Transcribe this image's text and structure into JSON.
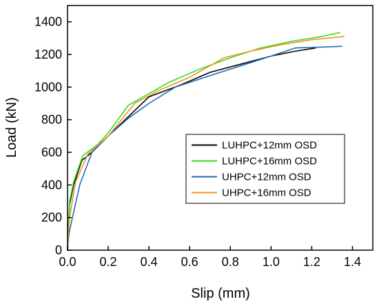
{
  "chart_data": {
    "type": "line",
    "xlabel": "Slip (mm)",
    "ylabel": "Load (kN)",
    "xlim": [
      0.0,
      1.5
    ],
    "ylim": [
      0,
      1500
    ],
    "xticks": [
      0.0,
      0.2,
      0.4,
      0.6,
      0.8,
      1.0,
      1.2,
      1.4
    ],
    "xtick_labels": [
      "0.0",
      "0.2",
      "0.4",
      "0.6",
      "0.8",
      "1.0",
      "1.2",
      "1.4"
    ],
    "yticks": [
      0,
      200,
      400,
      600,
      800,
      1000,
      1200,
      1400
    ],
    "ytick_labels": [
      "0",
      "200",
      "400",
      "600",
      "800",
      "1000",
      "1200",
      "1400"
    ],
    "grid": false,
    "legend_position": "center-right",
    "series": [
      {
        "name": "LUHPC+12mm OSD",
        "color": "#000000",
        "points": [
          [
            0.0,
            0
          ],
          [
            0.005,
            150
          ],
          [
            0.01,
            280
          ],
          [
            0.03,
            400
          ],
          [
            0.07,
            550
          ],
          [
            0.12,
            600
          ],
          [
            0.2,
            700
          ],
          [
            0.3,
            820
          ],
          [
            0.4,
            940
          ],
          [
            0.55,
            1010
          ],
          [
            0.7,
            1090
          ],
          [
            0.85,
            1140
          ],
          [
            1.0,
            1190
          ],
          [
            1.12,
            1220
          ],
          [
            1.22,
            1240
          ]
        ]
      },
      {
        "name": "LUHPC+16mm OSD",
        "color": "#33dd22",
        "points": [
          [
            0.0,
            0
          ],
          [
            0.005,
            150
          ],
          [
            0.01,
            300
          ],
          [
            0.03,
            420
          ],
          [
            0.075,
            580
          ],
          [
            0.15,
            650
          ],
          [
            0.2,
            720
          ],
          [
            0.3,
            890
          ],
          [
            0.33,
            910
          ],
          [
            0.4,
            960
          ],
          [
            0.5,
            1030
          ],
          [
            0.65,
            1110
          ],
          [
            0.8,
            1180
          ],
          [
            0.95,
            1240
          ],
          [
            1.1,
            1280
          ],
          [
            1.25,
            1310
          ],
          [
            1.34,
            1335
          ]
        ]
      },
      {
        "name": "UHPC+12mm OSD",
        "color": "#1f6cb4",
        "points": [
          [
            0.0,
            0
          ],
          [
            0.005,
            80
          ],
          [
            0.01,
            120
          ],
          [
            0.06,
            400
          ],
          [
            0.12,
            600
          ],
          [
            0.2,
            700
          ],
          [
            0.3,
            810
          ],
          [
            0.4,
            900
          ],
          [
            0.53,
            1000
          ],
          [
            0.7,
            1070
          ],
          [
            0.85,
            1130
          ],
          [
            1.0,
            1190
          ],
          [
            1.12,
            1240
          ],
          [
            1.25,
            1245
          ],
          [
            1.35,
            1250
          ]
        ]
      },
      {
        "name": "UHPC+16mm OSD",
        "color": "#f39021",
        "points": [
          [
            0.0,
            0
          ],
          [
            0.005,
            120
          ],
          [
            0.01,
            200
          ],
          [
            0.04,
            420
          ],
          [
            0.1,
            590
          ],
          [
            0.2,
            700
          ],
          [
            0.33,
            900
          ],
          [
            0.45,
            980
          ],
          [
            0.6,
            1060
          ],
          [
            0.77,
            1180
          ],
          [
            0.9,
            1220
          ],
          [
            1.05,
            1260
          ],
          [
            1.2,
            1290
          ],
          [
            1.36,
            1310
          ]
        ]
      }
    ]
  }
}
